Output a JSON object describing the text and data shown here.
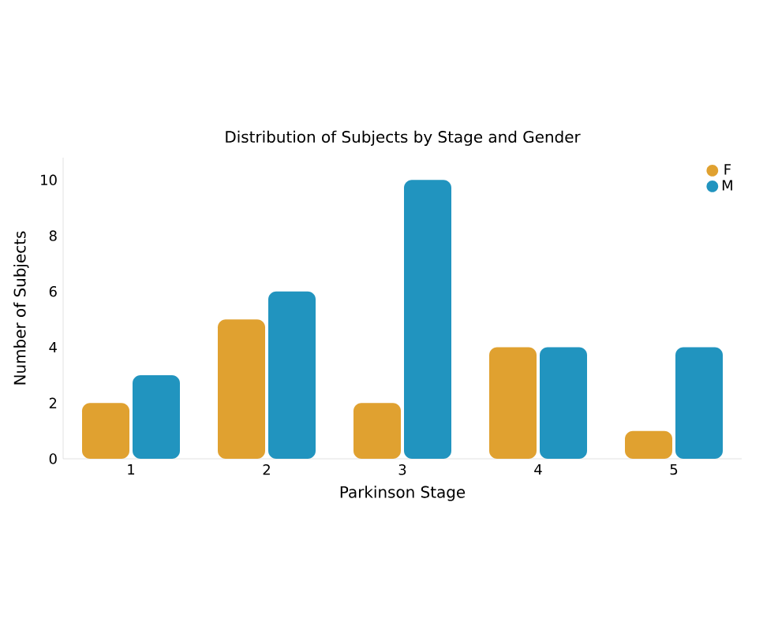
{
  "chart_data": {
    "type": "bar",
    "title": "Distribution of Subjects by Stage and Gender",
    "xlabel": "Parkinson Stage",
    "ylabel": "Number of Subjects",
    "categories": [
      "1",
      "2",
      "3",
      "4",
      "5"
    ],
    "series": [
      {
        "name": "F",
        "color": "#e0a130",
        "values": [
          2,
          5,
          2,
          4,
          1
        ]
      },
      {
        "name": "M",
        "color": "#2194bf",
        "values": [
          3,
          6,
          10,
          4,
          4
        ]
      }
    ],
    "ylim": [
      0,
      10.8
    ],
    "yticks": [
      0,
      2,
      4,
      6,
      8,
      10
    ],
    "grid": false,
    "legend": "top right"
  }
}
